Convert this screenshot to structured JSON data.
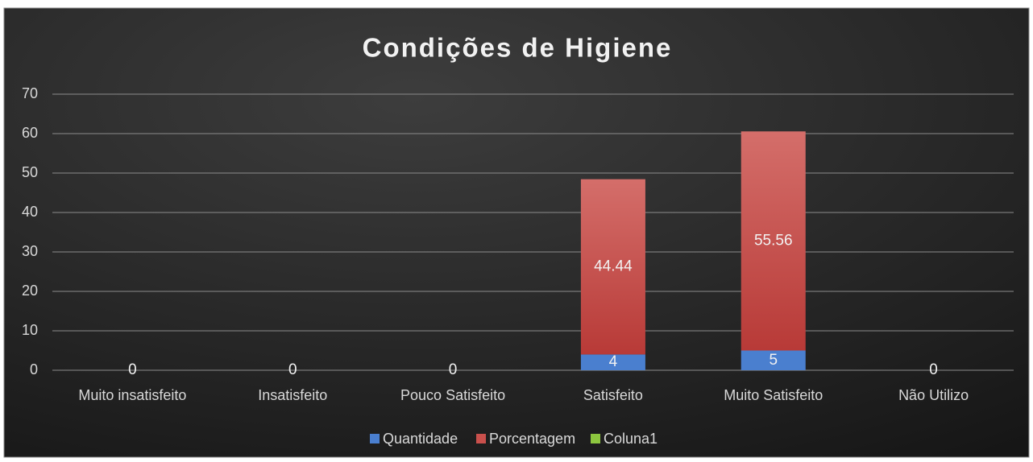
{
  "chart_data": {
    "type": "bar",
    "stacked": true,
    "title": "Condições de Higiene",
    "categories": [
      "Muito insatisfeito",
      "Insatisfeito",
      "Pouco Satisfeito",
      "Satisfeito",
      "Muito Satisfeito",
      "Não Utilizo"
    ],
    "series": [
      {
        "name": "Quantidade",
        "color": "#4a7fcf",
        "values": [
          0,
          0,
          0,
          4,
          5,
          0
        ]
      },
      {
        "name": "Porcentagem",
        "color": "#c9504c",
        "values": [
          null,
          null,
          null,
          44.44,
          55.56,
          null
        ]
      },
      {
        "name": "Coluna1",
        "color": "#8dc63f",
        "values": [
          null,
          null,
          null,
          null,
          null,
          null
        ]
      }
    ],
    "ylim": [
      0,
      70
    ],
    "yticks": [
      0,
      10,
      20,
      30,
      40,
      50,
      60,
      70
    ],
    "grid": true,
    "legend": "bottom"
  }
}
